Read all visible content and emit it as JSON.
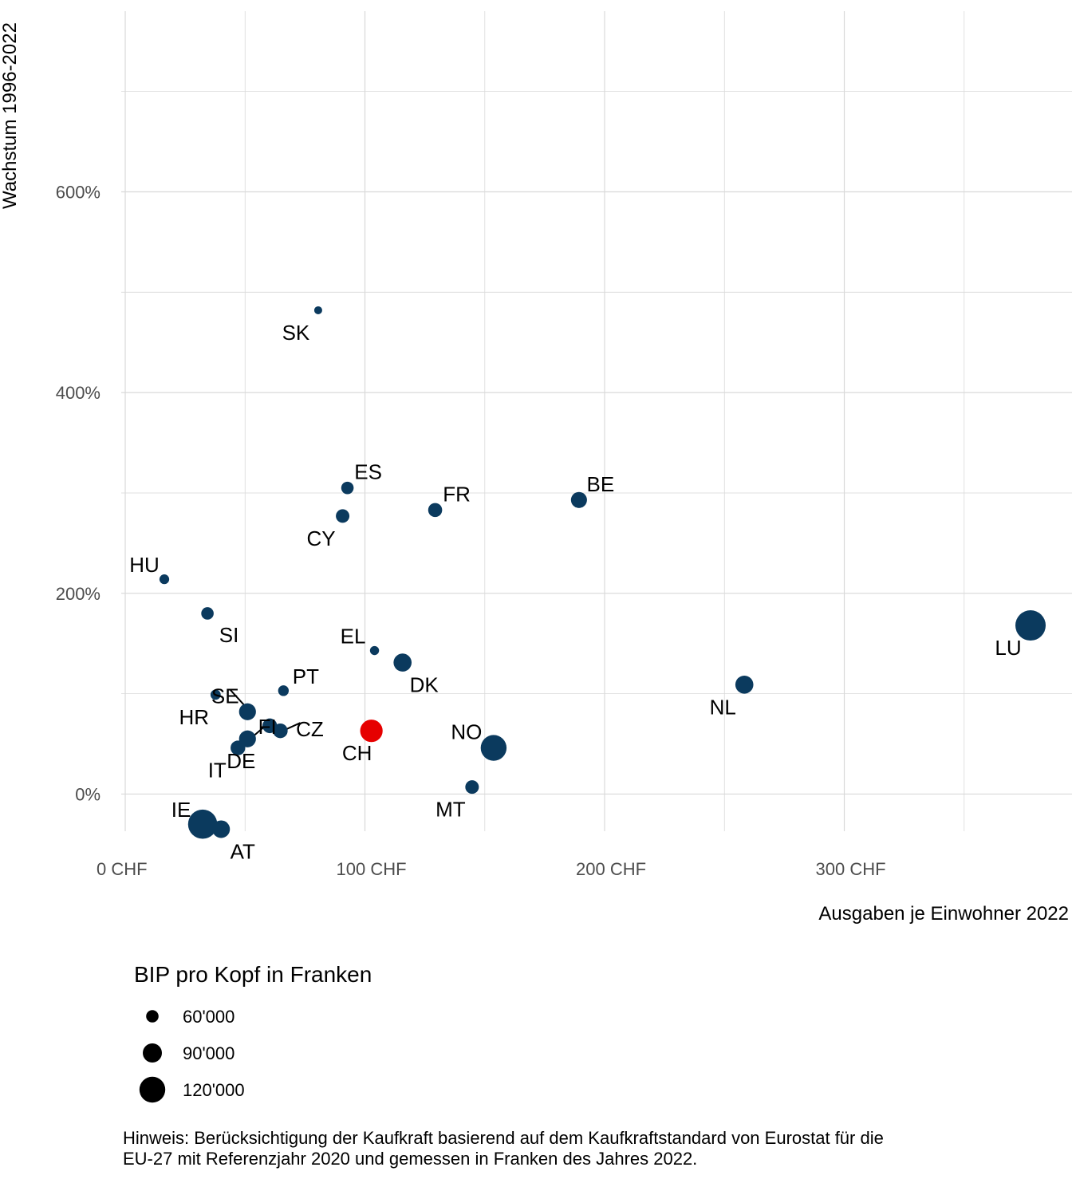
{
  "chart_data": {
    "type": "scatter",
    "xlabel": "Ausgaben je Einwohner 2022",
    "ylabel": "Wachstum 1996-2022",
    "xlim": [
      -5,
      395
    ],
    "ylim": [
      -37,
      780
    ],
    "x_ticks": [
      0,
      100,
      200,
      300
    ],
    "x_tick_labels": [
      "0 CHF",
      "100 CHF",
      "200 CHF",
      "300 CHF"
    ],
    "y_ticks": [
      0,
      200,
      400,
      600
    ],
    "y_tick_labels": [
      "0%",
      "200%",
      "400%",
      "600%"
    ],
    "grid": true,
    "legend": {
      "title": "BIP pro Kopf in Franken",
      "position": "bottom-left",
      "entries": [
        {
          "label": "60'000",
          "value": 60000
        },
        {
          "label": "90'000",
          "value": 90000
        },
        {
          "label": "120'000",
          "value": 120000
        }
      ]
    },
    "colors": {
      "default": "#0b3a5e",
      "highlight": "#e60000"
    },
    "note": [
      "Hinweis: Berücksichtigung der Kaufkraft basierend auf dem Kaufkraftstandard von Eurostat für die",
      "EU-27 mit Referenzjahr 2020 und gemessen in Franken des Jahres 2022."
    ],
    "points": [
      {
        "label": "SK",
        "x": 80.5,
        "y": 482,
        "gdp": 40000,
        "highlight": false
      },
      {
        "label": "ES",
        "x": 92.7,
        "y": 305,
        "gdp": 60000,
        "highlight": false
      },
      {
        "label": "CY",
        "x": 90.7,
        "y": 277,
        "gdp": 65000,
        "highlight": false
      },
      {
        "label": "FR",
        "x": 129.3,
        "y": 283,
        "gdp": 67000,
        "highlight": false
      },
      {
        "label": "BE",
        "x": 189.3,
        "y": 293,
        "gdp": 76000,
        "highlight": false
      },
      {
        "label": "HU",
        "x": 16.3,
        "y": 214,
        "gdp": 48000,
        "highlight": false
      },
      {
        "label": "SI",
        "x": 34.3,
        "y": 180,
        "gdp": 60000,
        "highlight": false
      },
      {
        "label": "EL",
        "x": 104,
        "y": 143,
        "gdp": 45000,
        "highlight": false
      },
      {
        "label": "DK",
        "x": 115.7,
        "y": 131,
        "gdp": 85000,
        "highlight": false
      },
      {
        "label": "LU",
        "x": 377.7,
        "y": 168,
        "gdp": 140000,
        "highlight": false
      },
      {
        "label": "NL",
        "x": 258.3,
        "y": 109,
        "gdp": 85000,
        "highlight": false
      },
      {
        "label": "PT",
        "x": 66,
        "y": 103,
        "gdp": 52000,
        "highlight": false
      },
      {
        "label": "HR",
        "x": 37.7,
        "y": 99,
        "gdp": 50000,
        "highlight": false
      },
      {
        "label": "SE",
        "x": 51,
        "y": 82,
        "gdp": 80000,
        "highlight": false
      },
      {
        "label": "FI",
        "x": 60.3,
        "y": 68,
        "gdp": 70000,
        "highlight": false
      },
      {
        "label": "CZ",
        "x": 64.7,
        "y": 63,
        "gdp": 70000,
        "highlight": false
      },
      {
        "label": "DE",
        "x": 51,
        "y": 55,
        "gdp": 80000,
        "highlight": false
      },
      {
        "label": "IT",
        "x": 47,
        "y": 46,
        "gdp": 70000,
        "highlight": false
      },
      {
        "label": "CH",
        "x": 102.7,
        "y": 63,
        "gdp": 105000,
        "highlight": true
      },
      {
        "label": "NO",
        "x": 153.7,
        "y": 46,
        "gdp": 120000,
        "highlight": false
      },
      {
        "label": "MT",
        "x": 144.7,
        "y": 7,
        "gdp": 65000,
        "highlight": false
      },
      {
        "label": "IE",
        "x": 32.3,
        "y": -30,
        "gdp": 135000,
        "highlight": false
      },
      {
        "label": "AT",
        "x": 40,
        "y": -35,
        "gdp": 83000,
        "highlight": false
      }
    ]
  }
}
